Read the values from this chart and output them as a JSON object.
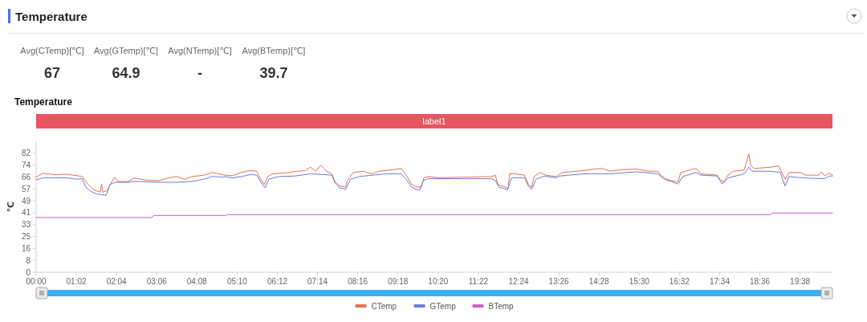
{
  "chart_data": [
    {
      "type": "other",
      "title": "Temperature",
      "annotations": [
        "Avg(CTemp)[℃]",
        "Avg(GTemp)[℃]",
        "Avg(NTemp)[℃]",
        "Avg(BTemp)[℃]",
        "67",
        "64.9",
        "-",
        "39.7"
      ]
    },
    {
      "type": "line",
      "title": "Temperature",
      "ylabel": "℃",
      "legend": "bottom",
      "annotations": [
        "label1"
      ],
      "xlim": [
        0,
        1228
      ],
      "xticks": [
        {
          "value": 0,
          "label": "00:00"
        },
        {
          "value": 62,
          "label": "01:02"
        },
        {
          "value": 124,
          "label": "02:04"
        },
        {
          "value": 186,
          "label": "03:06"
        },
        {
          "value": 248,
          "label": "04:08"
        },
        {
          "value": 310,
          "label": "05:10"
        },
        {
          "value": 372,
          "label": "06:12"
        },
        {
          "value": 434,
          "label": "07:14"
        },
        {
          "value": 496,
          "label": "08:16"
        },
        {
          "value": 558,
          "label": "09:18"
        },
        {
          "value": 620,
          "label": "10:20"
        },
        {
          "value": 682,
          "label": "11:22"
        },
        {
          "value": 744,
          "label": "12:24"
        },
        {
          "value": 806,
          "label": "13:26"
        },
        {
          "value": 868,
          "label": "14:28"
        },
        {
          "value": 930,
          "label": "15:30"
        },
        {
          "value": 992,
          "label": "16:32"
        },
        {
          "value": 1054,
          "label": "17:34"
        },
        {
          "value": 1116,
          "label": "18:36"
        },
        {
          "value": 1178,
          "label": "19:38"
        }
      ],
      "ylim": [
        0,
        90.2
      ],
      "yticks": [
        0,
        {
          "value": 8.2,
          "label": "8"
        },
        {
          "value": 16.4,
          "label": "16"
        },
        {
          "value": 24.6,
          "label": "25"
        },
        {
          "value": 32.8,
          "label": "33"
        },
        41,
        {
          "value": 49.2,
          "label": "49"
        },
        {
          "value": 57.4,
          "label": "57"
        },
        {
          "value": 65.6,
          "label": "66"
        },
        {
          "value": 73.8,
          "label": "74"
        },
        82
      ],
      "series": [
        {
          "name": "CTemp",
          "color": "#e8704f",
          "x": [
            0,
            10,
            30,
            47,
            64,
            71,
            77,
            80,
            89,
            99,
            101,
            103,
            107,
            109,
            114,
            121,
            126,
            142,
            151,
            167,
            188,
            204,
            217,
            229,
            241,
            258,
            272,
            291,
            303,
            316,
            328,
            340,
            344,
            352,
            357,
            365,
            390,
            402,
            415,
            423,
            431,
            439,
            448,
            456,
            461,
            468,
            477,
            480,
            489,
            505,
            517,
            530,
            547,
            563,
            572,
            579,
            588,
            594,
            598,
            604,
            621,
            662,
            703,
            708,
            712,
            724,
            728,
            730,
            740,
            753,
            759,
            764,
            768,
            777,
            786,
            802,
            811,
            836,
            860,
            873,
            885,
            901,
            926,
            943,
            959,
            963,
            972,
            984,
            990,
            994,
            1009,
            1018,
            1025,
            1050,
            1056,
            1061,
            1067,
            1075,
            1092,
            1096,
            1099,
            1102,
            1108,
            1133,
            1145,
            1149,
            1155,
            1161,
            1179,
            1186,
            1207,
            1211,
            1216,
            1223,
            1228
          ],
          "values": [
            65.5,
            68.1,
            67.2,
            67.5,
            66.5,
            66.0,
            62.5,
            60.4,
            56.7,
            55.2,
            60.8,
            55.0,
            55.8,
            56.0,
            60.4,
            65.5,
            62.6,
            62.5,
            65.0,
            63.6,
            63.0,
            65.0,
            66.0,
            64.0,
            66.0,
            66.8,
            68.7,
            66.9,
            66.5,
            68.7,
            70.0,
            69.6,
            65.9,
            60.4,
            65.9,
            67.8,
            68.7,
            69.6,
            70.0,
            72.4,
            69.6,
            73.7,
            69.6,
            67.8,
            62.3,
            59.5,
            58.6,
            63.2,
            68.7,
            69.6,
            67.8,
            69.6,
            70.5,
            71.5,
            65.9,
            60.4,
            58.6,
            58.6,
            65.0,
            65.9,
            65.0,
            65.5,
            65.9,
            66.9,
            60.4,
            58.6,
            57.7,
            67.8,
            67.8,
            66.9,
            60.4,
            58.6,
            65.9,
            68.7,
            66.9,
            65.9,
            68.7,
            69.6,
            71.1,
            71.5,
            69.6,
            70.5,
            71.1,
            69.6,
            69.6,
            66.9,
            64.1,
            62.6,
            62.3,
            68.7,
            70.5,
            71.5,
            67.8,
            66.9,
            63.2,
            62.3,
            66.9,
            69.6,
            70.5,
            76.9,
            81.6,
            73.3,
            71.5,
            72.4,
            73.3,
            69.6,
            64.1,
            68.7,
            68.7,
            66.9,
            66.9,
            69.2,
            66.4,
            68.2,
            66.9
          ]
        },
        {
          "name": "GTemp",
          "color": "#6b7be0",
          "x": [
            0,
            10,
            47,
            64,
            71,
            77,
            84,
            93,
            108,
            114,
            121,
            142,
            151,
            188,
            217,
            241,
            258,
            272,
            287,
            291,
            303,
            316,
            332,
            340,
            349,
            353,
            359,
            374,
            399,
            423,
            456,
            461,
            468,
            477,
            485,
            498,
            539,
            563,
            572,
            579,
            591,
            597,
            604,
            662,
            703,
            708,
            714,
            727,
            733,
            753,
            759,
            764,
            771,
            784,
            802,
            807,
            844,
            885,
            926,
            959,
            968,
            980,
            990,
            997,
            1018,
            1025,
            1050,
            1058,
            1067,
            1092,
            1099,
            1104,
            1133,
            1148,
            1151,
            1155,
            1161,
            1182,
            1216,
            1223,
            1228
          ],
          "values": [
            63.7,
            65.0,
            65.0,
            64.1,
            64.5,
            58.5,
            55.8,
            53.9,
            53.0,
            60.4,
            61.9,
            61.9,
            62.6,
            62.0,
            62.0,
            62.6,
            64.1,
            66.0,
            65.5,
            65.9,
            65.0,
            65.9,
            67.4,
            66.9,
            60.4,
            58.2,
            64.1,
            65.9,
            66.3,
            67.8,
            66.9,
            61.4,
            58.2,
            57.1,
            64.1,
            65.9,
            67.8,
            67.8,
            63.2,
            58.6,
            56.4,
            63.2,
            64.4,
            64.4,
            64.4,
            63.2,
            58.6,
            56.8,
            65.0,
            65.0,
            59.5,
            57.1,
            64.1,
            66.3,
            65.0,
            66.3,
            67.8,
            67.8,
            69.2,
            67.8,
            64.1,
            62.3,
            60.8,
            65.9,
            68.7,
            66.9,
            66.3,
            60.8,
            65.0,
            67.8,
            72.4,
            69.6,
            69.6,
            68.7,
            64.1,
            59.5,
            65.9,
            65.0,
            64.4,
            66.3,
            66.3
          ]
        },
        {
          "name": "BTemp",
          "color": "#d05cc8",
          "x": [
            0,
            179,
            181,
            293,
            295,
            1133,
            1135,
            1228
          ],
          "values": [
            37.7,
            37.7,
            39.1,
            39.1,
            39.7,
            39.7,
            40.8,
            40.8
          ]
        }
      ]
    }
  ]
}
